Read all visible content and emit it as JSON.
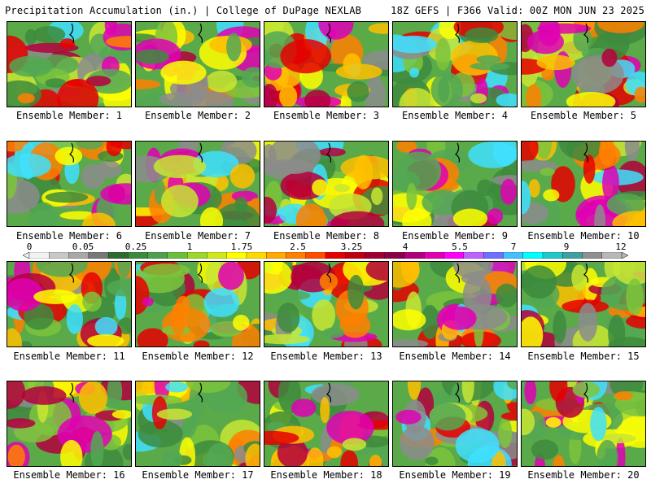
{
  "header": {
    "left": "Precipitation Accumulation (in.) | College of DuPage NEXLAB",
    "right": "18Z GEFS | F366 Valid: 00Z MON JUN 23 2025"
  },
  "colorbar": {
    "labels": [
      "0",
      "0.05",
      "0.25",
      "1",
      "1.75",
      "2.5",
      "3.25",
      "4",
      "5.5",
      "7",
      "9",
      "12"
    ],
    "colors": [
      "#f2f2f2",
      "#c8c8c8",
      "#a8a8a8",
      "#787878",
      "#2e6b2e",
      "#3c8a3c",
      "#4ea04e",
      "#6cbf3a",
      "#9ad82c",
      "#cfe81a",
      "#ffff00",
      "#ffd800",
      "#ffaa00",
      "#ff8000",
      "#ff4d00",
      "#e60000",
      "#c00010",
      "#a00030",
      "#8a0046",
      "#b0007a",
      "#e000b0",
      "#ff00ff",
      "#c060ff",
      "#7070ff",
      "#40c0ff",
      "#00ffff",
      "#20c8c8",
      "#40a0a0",
      "#909090",
      "#b8b8b8"
    ]
  },
  "caption_prefix": "Ensemble Member: ",
  "members": [
    "1",
    "2",
    "3",
    "4",
    "5",
    "6",
    "7",
    "8",
    "9",
    "10",
    "11",
    "12",
    "13",
    "14",
    "15",
    "16",
    "17",
    "18",
    "19",
    "20"
  ]
}
